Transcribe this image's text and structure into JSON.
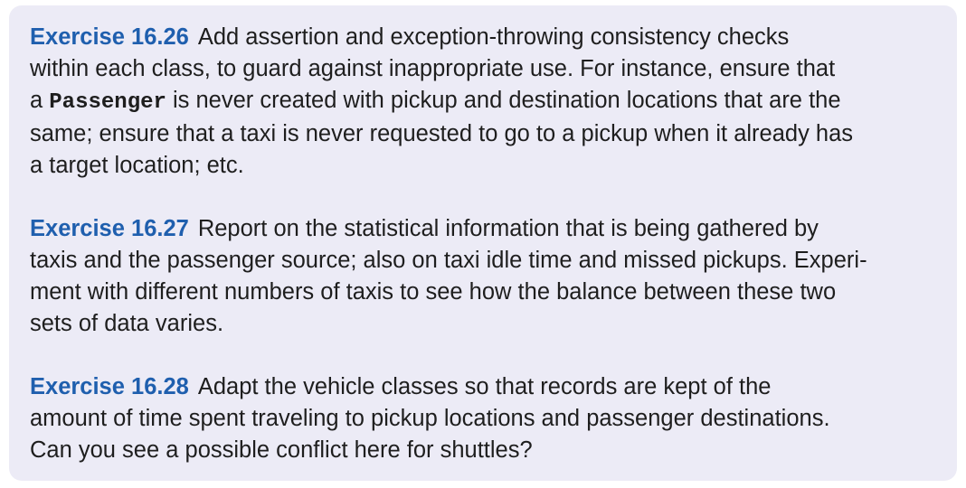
{
  "exercises": [
    {
      "title": "Exercise 16.26",
      "lines": [
        [
          "Add assertion and exception-throwing consistency checks"
        ],
        [
          "within each class, to guard against inappropriate use. For instance, ensure that"
        ],
        [
          "a ",
          "Passenger",
          " is never created with pickup and destination locations that are the"
        ],
        [
          "same; ensure that a taxi is never requested to go to a pickup when it already has"
        ],
        [
          "a target location; etc."
        ]
      ]
    },
    {
      "title": "Exercise 16.27",
      "lines": [
        [
          "Report on the statistical information that is being gathered by"
        ],
        [
          "taxis and the passenger source; also on taxi idle time and missed pickups. Experi-"
        ],
        [
          "ment with different numbers of taxis to see how the balance between these two"
        ],
        [
          "sets of data varies."
        ]
      ]
    },
    {
      "title": "Exercise 16.28",
      "lines": [
        [
          "Adapt the vehicle classes so that records are kept of the"
        ],
        [
          "amount of time spent traveling to pickup locations and passenger destinations."
        ],
        [
          "Can you see a possible conflict here for shuttles?"
        ]
      ]
    }
  ]
}
